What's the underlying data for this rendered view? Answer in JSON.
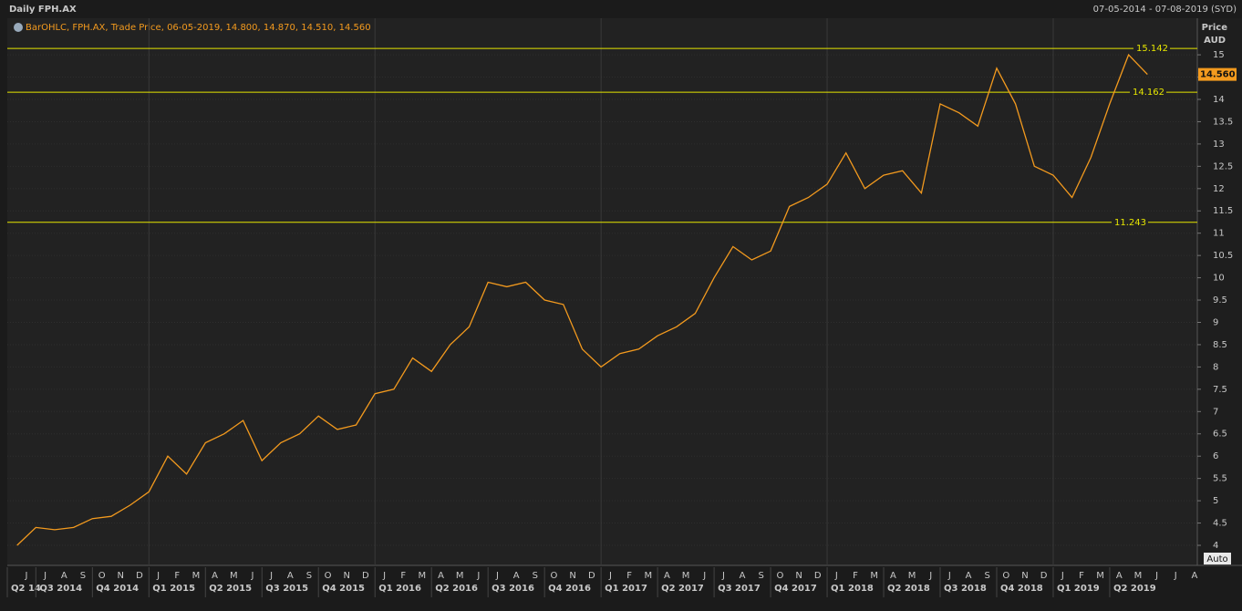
{
  "header": {
    "title": "Daily FPH.AX",
    "range": "07-05-2014 - 07-08-2019 (SYD)",
    "auto": "Auto"
  },
  "chart_data": {
    "type": "line",
    "legend": "BarOHLC, FPH.AX, Trade Price, 06-05-2019, 14.800, 14.870, 14.510, 14.560",
    "y_label": "Price",
    "y_unit": "AUD",
    "x": [
      "2014-05",
      "2014-06",
      "2014-07",
      "2014-08",
      "2014-09",
      "2014-10",
      "2014-11",
      "2014-12",
      "2015-01",
      "2015-02",
      "2015-03",
      "2015-04",
      "2015-05",
      "2015-06",
      "2015-07",
      "2015-08",
      "2015-09",
      "2015-10",
      "2015-11",
      "2015-12",
      "2016-01",
      "2016-02",
      "2016-03",
      "2016-04",
      "2016-05",
      "2016-06",
      "2016-07",
      "2016-08",
      "2016-09",
      "2016-10",
      "2016-11",
      "2016-12",
      "2017-01",
      "2017-02",
      "2017-03",
      "2017-04",
      "2017-05",
      "2017-06",
      "2017-07",
      "2017-08",
      "2017-09",
      "2017-10",
      "2017-11",
      "2017-12",
      "2018-01",
      "2018-02",
      "2018-03",
      "2018-04",
      "2018-05",
      "2018-06",
      "2018-07",
      "2018-08",
      "2018-09",
      "2018-10",
      "2018-11",
      "2018-12",
      "2019-01",
      "2019-02",
      "2019-03",
      "2019-04",
      "2019-05"
    ],
    "series": [
      {
        "name": "FPH.AX",
        "color": "#f39a1e",
        "values": [
          4.0,
          4.4,
          4.35,
          4.4,
          4.6,
          4.65,
          4.9,
          5.2,
          6.0,
          5.6,
          6.3,
          6.5,
          6.8,
          5.9,
          6.3,
          6.5,
          6.9,
          6.6,
          6.7,
          7.4,
          7.5,
          8.2,
          7.9,
          8.5,
          8.9,
          9.9,
          9.8,
          9.9,
          9.5,
          9.4,
          8.4,
          8.0,
          8.3,
          8.4,
          8.7,
          8.9,
          9.2,
          10.0,
          10.7,
          10.4,
          10.6,
          11.6,
          11.8,
          12.1,
          12.8,
          12.0,
          12.3,
          12.4,
          11.9,
          13.9,
          13.7,
          13.4,
          14.7,
          13.9,
          12.5,
          12.3,
          11.8,
          12.7,
          13.9,
          15.0,
          14.56
        ]
      }
    ],
    "ylim": [
      3.55,
      15.37
    ],
    "yticks": [
      4,
      4.5,
      5,
      5.5,
      6,
      6.5,
      7,
      7.5,
      8,
      8.5,
      9,
      9.5,
      10,
      10.5,
      11,
      11.5,
      12,
      12.5,
      13,
      13.5,
      14,
      14.5,
      15
    ],
    "grid": true,
    "levels": [
      {
        "value": 15.142
      },
      {
        "value": 14.162
      },
      {
        "value": 11.243
      }
    ],
    "level_color": "#e6e600",
    "last_price": {
      "value": 14.56,
      "label": "14.560"
    },
    "months": [
      "J",
      "J",
      "A",
      "S",
      "O",
      "N",
      "D",
      "J",
      "F",
      "M",
      "A",
      "M",
      "J",
      "J",
      "A",
      "S",
      "O",
      "N",
      "D",
      "J",
      "F",
      "M",
      "A",
      "M",
      "J",
      "J",
      "A",
      "S",
      "O",
      "N",
      "D",
      "J",
      "F",
      "M",
      "A",
      "M",
      "J",
      "J",
      "A",
      "S",
      "O",
      "N",
      "D",
      "J",
      "F",
      "M",
      "A",
      "M",
      "J",
      "J",
      "A",
      "S",
      "O",
      "N",
      "D",
      "J",
      "F",
      "M",
      "A",
      "M",
      "J",
      "J",
      "A"
    ],
    "quarters": [
      "Q2 14",
      "Q3 2014",
      "Q4 2014",
      "Q1 2015",
      "Q2 2015",
      "Q3 2015",
      "Q4 2015",
      "Q1 2016",
      "Q2 2016",
      "Q3 2016",
      "Q4 2016",
      "Q1 2017",
      "Q2 2017",
      "Q3 2017",
      "Q4 2017",
      "Q1 2018",
      "Q2 2018",
      "Q3 2018",
      "Q4 2018",
      "Q1 2019",
      "Q2 2019"
    ]
  }
}
